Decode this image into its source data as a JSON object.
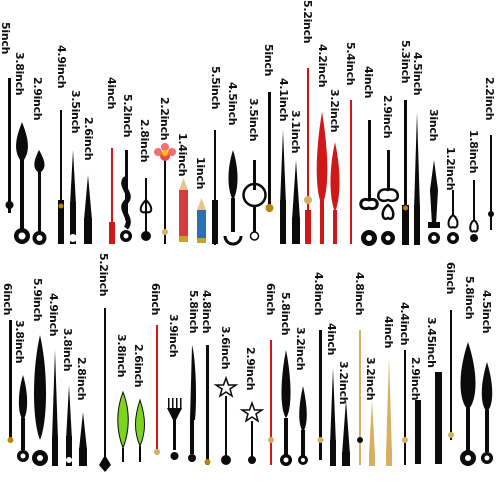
{
  "labels": [
    "5inch",
    "3.8inch",
    "2.9inch",
    "4.9inch",
    "3.5inch",
    "2.6inch",
    "4inch",
    "5.2inch",
    "2.8inch",
    "2.2inch",
    "1.4inch",
    "1inch",
    "5.5inch",
    "4.5inch",
    "3.5inch",
    "5inch",
    "4.1inch",
    "3.1inch",
    "5.2inch",
    "4.2inch",
    "3.2inch",
    "5.4inch",
    "4inch",
    "2.9inch",
    "5.3inch",
    "4.5inch",
    "3inch",
    "1.2inch",
    "1.8inch",
    "2.2inch",
    "6inch",
    "3.8inch",
    "5.9inch",
    "4.9inch",
    "3.8inch",
    "2.8inch",
    "5.2inch",
    "3.8inch",
    "2.6inch",
    "6inch",
    "3.9inch",
    "5.8inch",
    "4.8inch",
    "3.6inch",
    "2.9inch",
    "6inch",
    "5.8inch",
    "3.2inch",
    "4.8inch",
    "4inch",
    "3.2inch",
    "4.8inch",
    "3.2inch",
    "4inch",
    "4.4inch",
    "2.9inch",
    "6inch",
    "3.45inch",
    "5.8inch",
    "4.5inch"
  ],
  "colors": {
    "black": "#0b0b0b",
    "red": "#d01818",
    "gold": "#d4b060",
    "green": "#7ed321",
    "brass": "#b8860b"
  }
}
